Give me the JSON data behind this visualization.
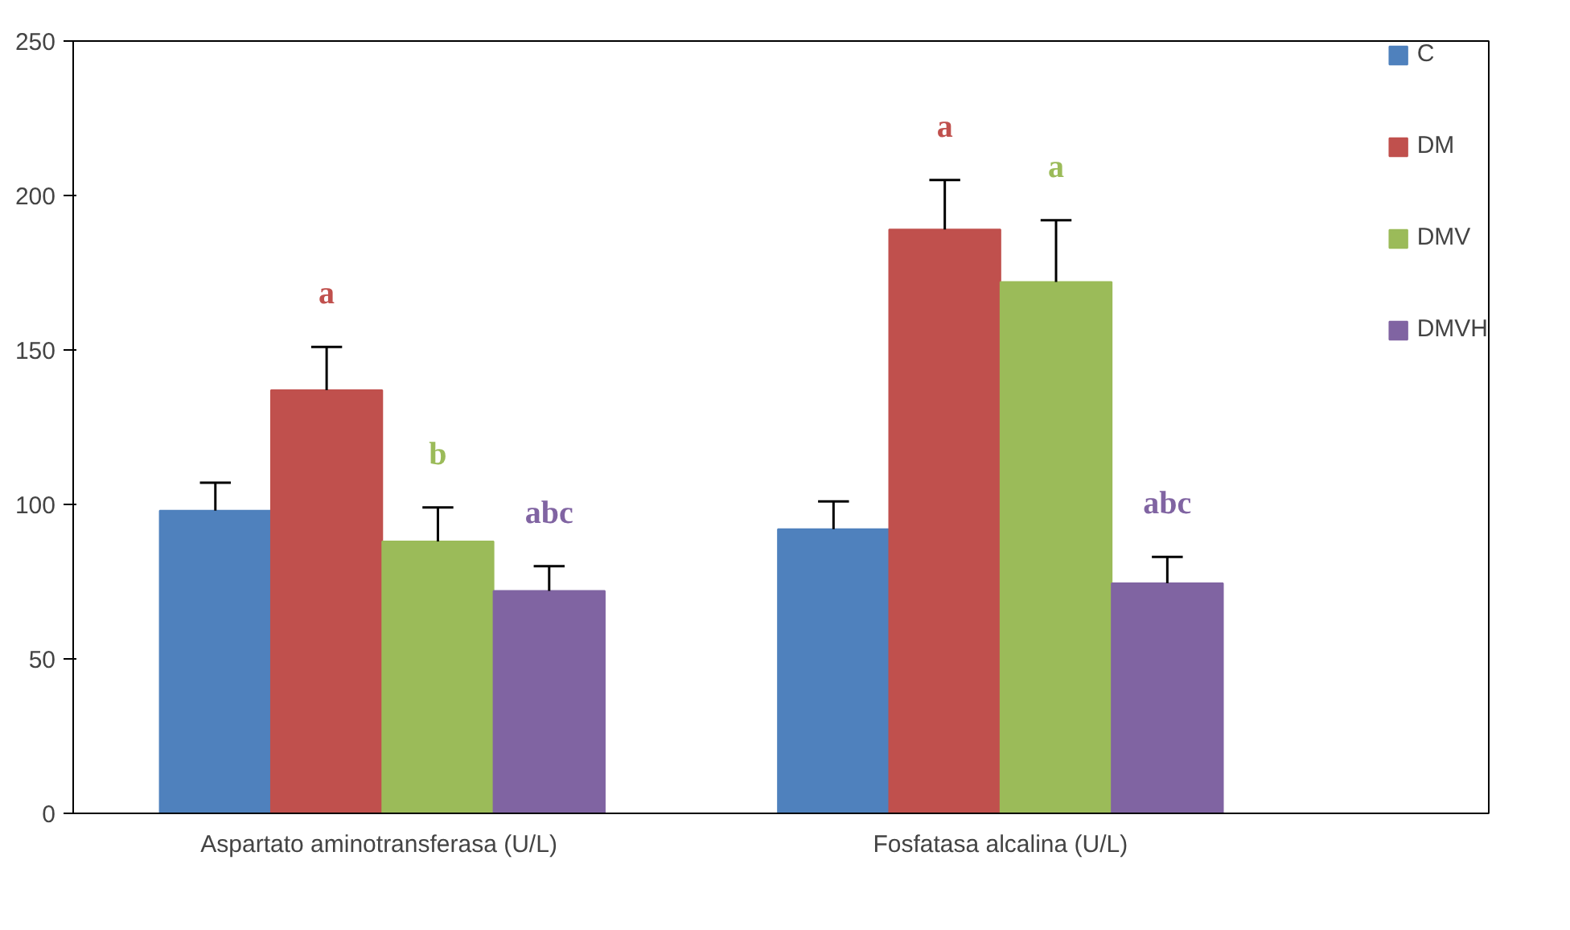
{
  "chart_data": {
    "type": "bar",
    "categories": [
      "Aspartato aminotransferasa  (U/L)",
      "Fosfatasa alcalina (U/L)"
    ],
    "series": [
      {
        "name": "C",
        "color": "#4f81bd",
        "values": [
          98,
          92
        ],
        "errors": [
          [
            98,
            107
          ],
          [
            92,
            101
          ]
        ]
      },
      {
        "name": "DM",
        "color": "#c0504d",
        "values": [
          137,
          189
        ],
        "errors": [
          [
            137,
            151
          ],
          [
            189,
            205
          ]
        ]
      },
      {
        "name": "DMV",
        "color": "#9bbb59",
        "values": [
          88,
          172
        ],
        "errors": [
          [
            88,
            99
          ],
          [
            172,
            192
          ]
        ]
      },
      {
        "name": "DMVH",
        "color": "#8064a2",
        "values": [
          72,
          74.5
        ],
        "errors": [
          [
            72,
            80
          ],
          [
            74.5,
            83
          ]
        ]
      }
    ],
    "annotations": [
      "a",
      "b",
      "abc",
      "a",
      "a",
      "abc"
    ],
    "ylim": [
      0,
      250
    ],
    "yticks": [
      0,
      50,
      100,
      150,
      200,
      250
    ],
    "grid": false,
    "legend": "top_right"
  }
}
